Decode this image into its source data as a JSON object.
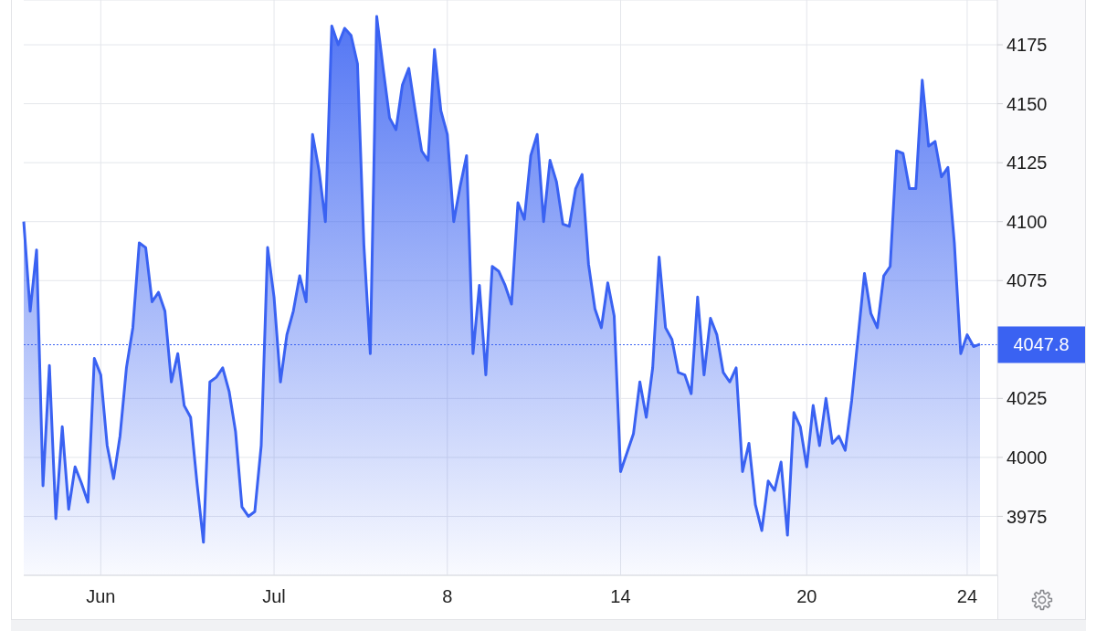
{
  "chart_data": {
    "type": "area",
    "categories": [
      null,
      null,
      null,
      null,
      null,
      null,
      null,
      null,
      null,
      null,
      null,
      null,
      "Jun",
      null,
      null,
      null,
      null,
      null,
      null,
      null,
      null,
      null,
      null,
      null,
      null,
      null,
      null,
      null,
      null,
      null,
      null,
      null,
      null,
      null,
      null,
      null,
      null,
      null,
      null,
      "Jul",
      null,
      null,
      null,
      null,
      null,
      null,
      null,
      null,
      null,
      null,
      null,
      null,
      null,
      null,
      null,
      null,
      null,
      null,
      null,
      null,
      null,
      null,
      null,
      null,
      null,
      null,
      "8",
      null,
      null,
      null,
      null,
      null,
      null,
      null,
      null,
      null,
      null,
      null,
      null,
      null,
      null,
      null,
      null,
      null,
      null,
      null,
      null,
      null,
      null,
      null,
      null,
      null,
      null,
      "14",
      null,
      null,
      null,
      null,
      null,
      null,
      null,
      null,
      null,
      null,
      null,
      null,
      null,
      null,
      null,
      null,
      null,
      null,
      null,
      null,
      null,
      null,
      null,
      null,
      null,
      null,
      null,
      null,
      "20",
      null,
      null,
      null,
      null,
      null,
      null,
      null,
      null,
      null,
      null,
      null,
      null,
      null,
      null,
      null,
      null,
      null,
      null,
      null,
      null,
      null,
      null,
      null,
      null,
      "24",
      null,
      null
    ],
    "series": [
      {
        "color": "#3a62f2",
        "values": [
          4100,
          4062,
          4088,
          3988,
          4039,
          3974,
          4013,
          3978,
          3996,
          3989,
          3981,
          4042,
          4035,
          4005,
          3991,
          4009,
          4038,
          4055,
          4091,
          4089,
          4066,
          4070,
          4062,
          4032,
          4044,
          4022,
          4017,
          3989,
          3964,
          4032,
          4034,
          4038,
          4028,
          4011,
          3979,
          3975,
          3977,
          4005,
          4089,
          4068,
          4032,
          4052,
          4062,
          4077,
          4066,
          4137,
          4122,
          4100,
          4183,
          4175,
          4182,
          4179,
          4167,
          4090,
          4044,
          4187,
          4165,
          4144,
          4139,
          4158,
          4165,
          4147,
          4130,
          4126,
          4173,
          4147,
          4137,
          4100,
          4115,
          4128,
          4044,
          4073,
          4035,
          4081,
          4079,
          4073,
          4065,
          4108,
          4101,
          4128,
          4137,
          4100,
          4126,
          4117,
          4099,
          4098,
          4114,
          4120,
          4082,
          4063,
          4055,
          4074,
          4060,
          3994,
          4002,
          4010,
          4032,
          4017,
          4038,
          4085,
          4055,
          4050,
          4036,
          4035,
          4027,
          4068,
          4035,
          4059,
          4052,
          4036,
          4032,
          4038,
          3994,
          4006,
          3980,
          3969,
          3990,
          3986,
          3998,
          3967,
          4019,
          4013,
          3996,
          4022,
          4005,
          4025,
          4006,
          4009,
          4003,
          4024,
          4051,
          4078,
          4061,
          4055,
          4077,
          4081,
          4130,
          4129,
          4114,
          4114,
          4160,
          4132,
          4134,
          4119,
          4123,
          4091,
          4044,
          4052,
          4047,
          4048
        ]
      }
    ],
    "ylim": [
      3950,
      4194
    ],
    "yticks": [
      3975,
      4000,
      4025,
      4075,
      4100,
      4125,
      4150,
      4175
    ],
    "grid": true,
    "ref_lines": [
      {
        "axis": "y",
        "value": 4047.8,
        "label": "4047.8",
        "color": "#3a62f2",
        "line_style": "dotted"
      }
    ]
  }
}
